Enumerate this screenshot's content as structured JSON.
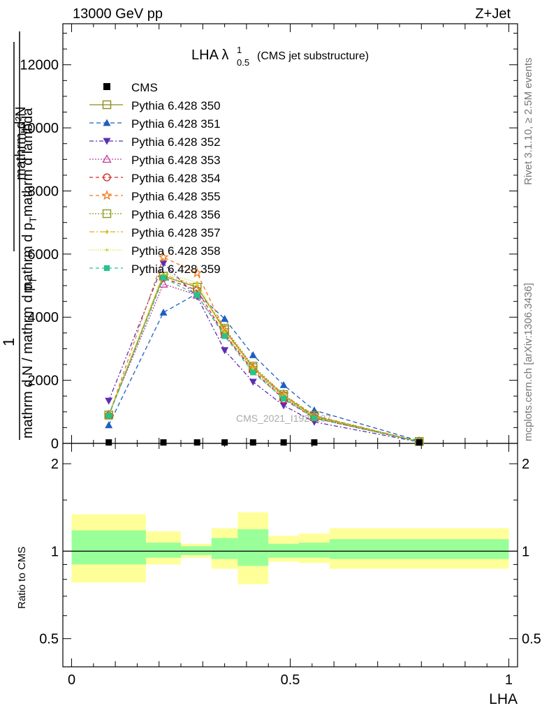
{
  "header": {
    "energy_label": "13000 GeV pp",
    "process_label": "Z+Jet"
  },
  "side": {
    "rivet_label": "Rivet 3.1.10, ≥ 2.5M events",
    "mcplots_label": "mcplots.cern.ch [arXiv:1306.3436]"
  },
  "watermark": "CMS_2021_I1920187",
  "chart_data": {
    "type": "line",
    "title_main": "LHA λ",
    "title_sup": "1",
    "title_sub": "0.5",
    "title_suffix": "(CMS jet substructure)",
    "ylabel_top_num": "mathrm d²N",
    "ylabel_top_den": "mathrm d p",
    "ylabel_top_den_sub": "T",
    "ylabel_top_den_rest": "mathrm d lambda",
    "ylabel_one": "1",
    "ylabel_bottom": "mathrm d N / mathrm d p",
    "ylabel_bottom_sub": "T",
    "ratio_ylabel": "Ratio to CMS",
    "xlabel": "LHA",
    "xlim": [
      -0.02,
      1.02
    ],
    "ylim": [
      0,
      13300
    ],
    "ratio_ylim": [
      0.4,
      2.35
    ],
    "main_yticks": [
      0,
      2000,
      4000,
      6000,
      8000,
      10000,
      12000
    ],
    "main_ytick_labels": [
      "0",
      "2000",
      "4000",
      "6000",
      "8000",
      "10000",
      "12000"
    ],
    "ratio_yticks": [
      0.5,
      1,
      2
    ],
    "ratio_ytick_labels": [
      "0.5",
      "1",
      "2"
    ],
    "xticks": [
      0,
      0.5,
      1
    ],
    "xtick_labels": [
      "0",
      "0.5",
      "1"
    ],
    "x": [
      0.085,
      0.21,
      0.287,
      0.35,
      0.415,
      0.485,
      0.555,
      0.795
    ],
    "bin_edges": [
      0,
      0.17,
      0.25,
      0.32,
      0.38,
      0.45,
      0.52,
      0.59,
      1.0
    ],
    "cms": {
      "name": "CMS",
      "values": [
        8,
        8,
        8,
        8,
        8,
        8,
        8,
        8
      ],
      "band_inner": [
        [
          0.9,
          1.18
        ],
        [
          0.95,
          1.07
        ],
        [
          0.97,
          1.04
        ],
        [
          0.94,
          1.11
        ],
        [
          0.89,
          1.19
        ],
        [
          0.95,
          1.06
        ],
        [
          0.95,
          1.07
        ],
        [
          0.94,
          1.1
        ]
      ],
      "band_outer": [
        [
          0.78,
          1.34
        ],
        [
          0.9,
          1.17
        ],
        [
          0.95,
          1.06
        ],
        [
          0.87,
          1.2
        ],
        [
          0.77,
          1.36
        ],
        [
          0.92,
          1.13
        ],
        [
          0.91,
          1.15
        ],
        [
          0.87,
          1.2
        ]
      ]
    },
    "series": [
      {
        "name": "Pythia 6.428 350",
        "color": "#8c8c1e",
        "marker": "square-open",
        "dash": "",
        "values": [
          900,
          5300,
          4950,
          3600,
          2400,
          1500,
          850,
          60
        ]
      },
      {
        "name": "Pythia 6.428 351",
        "color": "#1f5fbf",
        "marker": "triangle-up",
        "dash": "6,4",
        "values": [
          580,
          4150,
          4750,
          3950,
          2800,
          1850,
          1050,
          80
        ]
      },
      {
        "name": "Pythia 6.428 352",
        "color": "#5b2fb0",
        "marker": "triangle-down",
        "dash": "6,3,2,3",
        "values": [
          1350,
          5700,
          4650,
          2950,
          1950,
          1200,
          680,
          45
        ]
      },
      {
        "name": "Pythia 6.428 353",
        "color": "#bf3f9f",
        "marker": "triangle-open",
        "dash": "2,2",
        "values": [
          920,
          5050,
          4700,
          3450,
          2350,
          1450,
          820,
          55
        ]
      },
      {
        "name": "Pythia 6.428 354",
        "color": "#d62828",
        "marker": "circle-open",
        "dash": "5,4",
        "values": [
          880,
          5250,
          4850,
          3450,
          2300,
          1400,
          800,
          55
        ]
      },
      {
        "name": "Pythia 6.428 355",
        "color": "#f07a1a",
        "marker": "star-open",
        "dash": "5,4",
        "values": [
          870,
          5900,
          5400,
          3600,
          2400,
          1550,
          880,
          60
        ]
      },
      {
        "name": "Pythia 6.428 356",
        "color": "#8c9a1e",
        "marker": "square-open",
        "dash": "2,2",
        "values": [
          900,
          5300,
          4950,
          3650,
          2450,
          1550,
          880,
          60
        ]
      },
      {
        "name": "Pythia 6.428 357",
        "color": "#d4b414",
        "marker": "small-cross",
        "dash": "7,3,2,3",
        "values": [
          890,
          5350,
          5000,
          3550,
          2400,
          1500,
          850,
          58
        ]
      },
      {
        "name": "Pythia 6.428 358",
        "color": "#c8d420",
        "marker": "small-dot",
        "dash": "1,2",
        "values": [
          900,
          5400,
          5100,
          3500,
          2350,
          1450,
          820,
          55
        ]
      },
      {
        "name": "Pythia 6.428 359",
        "color": "#26c48a",
        "marker": "square-filled",
        "dash": "5,4",
        "values": [
          880,
          5250,
          4700,
          3400,
          2250,
          1420,
          800,
          55
        ]
      }
    ]
  }
}
